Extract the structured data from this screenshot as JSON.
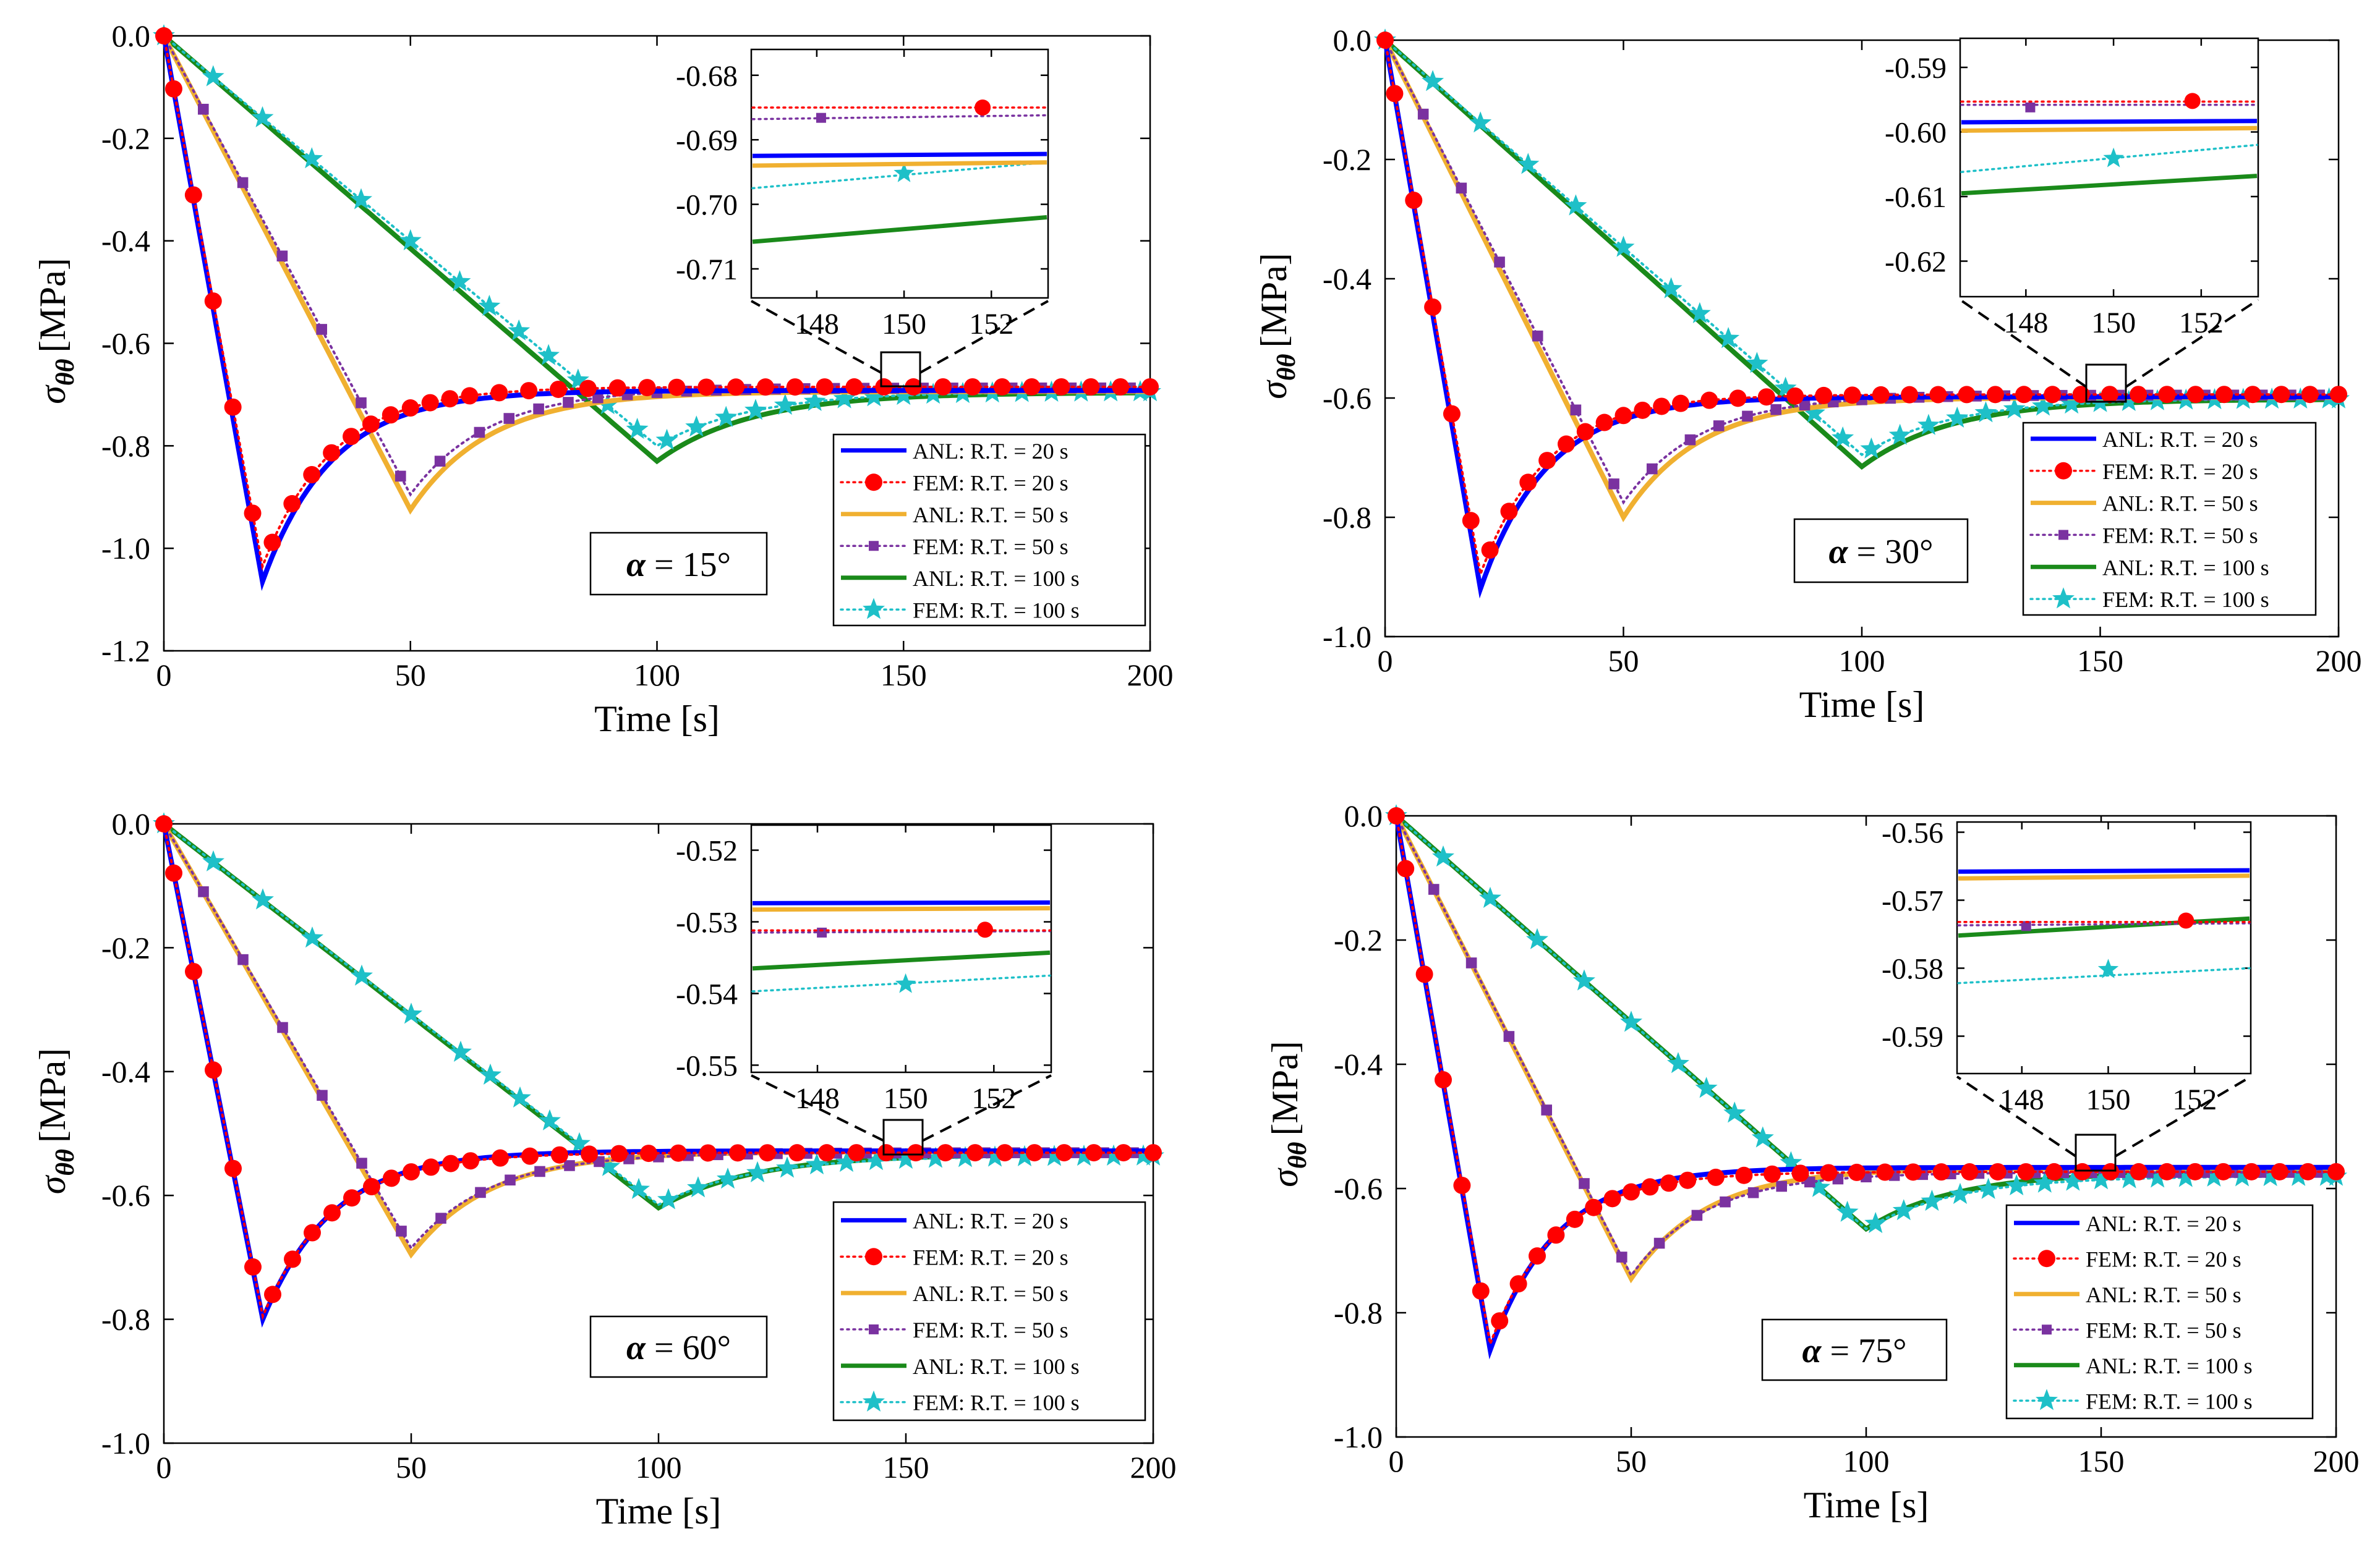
{
  "chart_data": [
    {
      "type": "line",
      "panel": "top-left",
      "alpha_label": "α = 15°",
      "xlabel": "Time [s]",
      "ylabel_symbol": "σ",
      "ylabel_sub": "θθ",
      "ylabel_unit": "[MPa]",
      "xlim": [
        0,
        200
      ],
      "ylim": [
        -1.2,
        0
      ],
      "xticks": [
        0,
        50,
        100,
        150,
        200
      ],
      "xtick_labels": [
        "0",
        "50",
        "100",
        "150",
        "200"
      ],
      "yticks": [
        0,
        -0.2,
        -0.4,
        -0.6,
        -0.8,
        -1.0,
        -1.2
      ],
      "ytick_labels": [
        "0.0",
        "-0.2",
        "-0.4",
        "-0.6",
        "-0.8",
        "-1.0",
        "-1.2"
      ],
      "series": [
        {
          "name": "ANL: R.T. = 20 s",
          "peak_time": 20,
          "peak": -1.065,
          "final": -0.692
        },
        {
          "name": "FEM: R.T. = 20 s",
          "peak_time": 20,
          "peak": -1.035,
          "final": -0.685
        },
        {
          "name": "ANL: R.T. = 50 s",
          "peak_time": 50,
          "peak": -0.925,
          "final": -0.694
        },
        {
          "name": "FEM: R.T. = 50 s",
          "peak_time": 50,
          "peak": -0.895,
          "final": -0.687
        },
        {
          "name": "ANL: R.T. = 100 s",
          "peak_time": 100,
          "peak": -0.83,
          "final": -0.696
        },
        {
          "name": "FEM: R.T. = 100 s",
          "peak_time": 100,
          "peak": -0.8,
          "final": -0.694
        }
      ],
      "inset": {
        "xlim": [
          146.5,
          153.3
        ],
        "ylim": [
          -0.7145,
          -0.676
        ],
        "xticks": [
          148,
          150,
          152
        ],
        "xtick_labels": [
          "148",
          "150",
          "152"
        ],
        "yticks": [
          -0.68,
          -0.69,
          -0.7,
          -0.71
        ],
        "ytick_labels": [
          "-0.68",
          "-0.69",
          "-0.70",
          "-0.71"
        ],
        "lines": [
          {
            "name": "ANL: R.T. = 20 s",
            "y": [
              -0.6925,
              -0.6922
            ]
          },
          {
            "name": "FEM: R.T. = 20 s",
            "y": [
              -0.685,
              -0.685
            ],
            "marker_x": [
              151.8
            ],
            "marker_y": [
              -0.685
            ]
          },
          {
            "name": "ANL: R.T. = 50 s",
            "y": [
              -0.694,
              -0.6935
            ]
          },
          {
            "name": "FEM: R.T. = 50 s",
            "y": [
              -0.6868,
              -0.6862
            ],
            "marker_x": [
              148.1
            ],
            "marker_y": [
              -0.6866
            ]
          },
          {
            "name": "ANL: R.T. = 100 s",
            "y": [
              -0.7058,
              -0.702
            ]
          },
          {
            "name": "FEM: R.T. = 100 s",
            "y": [
              -0.6975,
              -0.6935
            ],
            "marker_x": [
              150
            ],
            "marker_y": [
              -0.6952
            ]
          }
        ]
      }
    },
    {
      "type": "line",
      "panel": "top-right",
      "alpha_label": "α = 30°",
      "xlabel": "Time [s]",
      "ylabel_symbol": "σ",
      "ylabel_sub": "θθ",
      "ylabel_unit": "[MPa]",
      "xlim": [
        0,
        200
      ],
      "ylim": [
        -1.0,
        0
      ],
      "xticks": [
        0,
        50,
        100,
        150,
        200
      ],
      "xtick_labels": [
        "0",
        "50",
        "100",
        "150",
        "200"
      ],
      "yticks": [
        0,
        -0.2,
        -0.4,
        -0.6,
        -0.8,
        -1.0
      ],
      "ytick_labels": [
        "0.0",
        "-0.2",
        "-0.4",
        "-0.6",
        "-0.8",
        "-1.0"
      ],
      "series": [
        {
          "name": "ANL: R.T. = 20 s",
          "peak_time": 20,
          "peak": -0.92,
          "final": -0.598
        },
        {
          "name": "FEM: R.T. = 20 s",
          "peak_time": 20,
          "peak": -0.895,
          "final": -0.594
        },
        {
          "name": "ANL: R.T. = 50 s",
          "peak_time": 50,
          "peak": -0.8,
          "final": -0.599
        },
        {
          "name": "FEM: R.T. = 50 s",
          "peak_time": 50,
          "peak": -0.775,
          "final": -0.595
        },
        {
          "name": "ANL: R.T. = 100 s",
          "peak_time": 100,
          "peak": -0.715,
          "final": -0.602
        },
        {
          "name": "FEM: R.T. = 100 s",
          "peak_time": 100,
          "peak": -0.695,
          "final": -0.601
        }
      ],
      "inset": {
        "xlim": [
          146.5,
          153.3
        ],
        "ylim": [
          -0.6255,
          -0.5855
        ],
        "xticks": [
          148,
          150,
          152
        ],
        "xtick_labels": [
          "148",
          "150",
          "152"
        ],
        "yticks": [
          -0.59,
          -0.6,
          -0.61,
          -0.62
        ],
        "ytick_labels": [
          "-0.59",
          "-0.60",
          "-0.61",
          "-0.62"
        ],
        "lines": [
          {
            "name": "ANL: R.T. = 20 s",
            "y": [
              -0.5985,
              -0.5983
            ]
          },
          {
            "name": "FEM: R.T. = 20 s",
            "y": [
              -0.5953,
              -0.5953
            ],
            "marker_x": [
              151.8
            ],
            "marker_y": [
              -0.5952
            ]
          },
          {
            "name": "ANL: R.T. = 50 s",
            "y": [
              -0.5998,
              -0.5994
            ]
          },
          {
            "name": "FEM: R.T. = 50 s",
            "y": [
              -0.5958,
              -0.5958
            ],
            "marker_x": [
              148.1
            ],
            "marker_y": [
              -0.5962
            ]
          },
          {
            "name": "ANL: R.T. = 100 s",
            "y": [
              -0.6095,
              -0.6068
            ]
          },
          {
            "name": "FEM: R.T. = 100 s",
            "y": [
              -0.6062,
              -0.602
            ],
            "marker_x": [
              150
            ],
            "marker_y": [
              -0.6041
            ]
          }
        ]
      }
    },
    {
      "type": "line",
      "panel": "bottom-left",
      "alpha_label": "α = 60°",
      "xlabel": "Time [s]",
      "ylabel_symbol": "σ",
      "ylabel_sub": "θθ",
      "ylabel_unit": "[MPa]",
      "xlim": [
        0,
        200
      ],
      "ylim": [
        -1.0,
        0
      ],
      "xticks": [
        0,
        50,
        100,
        150,
        200
      ],
      "xtick_labels": [
        "0",
        "50",
        "100",
        "150",
        "200"
      ],
      "yticks": [
        0,
        -0.2,
        -0.4,
        -0.6,
        -0.8,
        -1.0
      ],
      "ytick_labels": [
        "0.0",
        "-0.2",
        "-0.4",
        "-0.6",
        "-0.8",
        "-1.0"
      ],
      "series": [
        {
          "name": "ANL: R.T. = 20 s",
          "peak_time": 20,
          "peak": -0.8,
          "final": -0.528
        },
        {
          "name": "FEM: R.T. = 20 s",
          "peak_time": 20,
          "peak": -0.795,
          "final": -0.531
        },
        {
          "name": "ANL: R.T. = 50 s",
          "peak_time": 50,
          "peak": -0.695,
          "final": -0.529
        },
        {
          "name": "FEM: R.T. = 50 s",
          "peak_time": 50,
          "peak": -0.685,
          "final": -0.531
        },
        {
          "name": "ANL: R.T. = 100 s",
          "peak_time": 100,
          "peak": -0.62,
          "final": -0.533
        },
        {
          "name": "FEM: R.T. = 100 s",
          "peak_time": 100,
          "peak": -0.615,
          "final": -0.536
        }
      ],
      "inset": {
        "xlim": [
          146.5,
          153.3
        ],
        "ylim": [
          -0.551,
          -0.5165
        ],
        "xticks": [
          148,
          150,
          152
        ],
        "xtick_labels": [
          "148",
          "150",
          "152"
        ],
        "yticks": [
          -0.52,
          -0.53,
          -0.54,
          -0.55
        ],
        "ytick_labels": [
          "-0.52",
          "-0.53",
          "-0.54",
          "-0.55"
        ],
        "lines": [
          {
            "name": "ANL: R.T. = 20 s",
            "y": [
              -0.5274,
              -0.5273
            ]
          },
          {
            "name": "FEM: R.T. = 20 s",
            "y": [
              -0.5312,
              -0.5312
            ],
            "marker_x": [
              151.8
            ],
            "marker_y": [
              -0.5311
            ]
          },
          {
            "name": "ANL: R.T. = 50 s",
            "y": [
              -0.5283,
              -0.5281
            ]
          },
          {
            "name": "FEM: R.T. = 50 s",
            "y": [
              -0.5315,
              -0.5313
            ],
            "marker_x": [
              148.1
            ],
            "marker_y": [
              -0.5315
            ]
          },
          {
            "name": "ANL: R.T. = 100 s",
            "y": [
              -0.5365,
              -0.5343
            ]
          },
          {
            "name": "FEM: R.T. = 100 s",
            "y": [
              -0.5397,
              -0.5375
            ],
            "marker_x": [
              150
            ],
            "marker_y": [
              -0.5387
            ]
          }
        ]
      }
    },
    {
      "type": "line",
      "panel": "bottom-right",
      "alpha_label": "α = 75°",
      "xlabel": "Time [s]",
      "ylabel_symbol": "σ",
      "ylabel_sub": "θθ",
      "ylabel_unit": "[MPa]",
      "xlim": [
        0,
        200
      ],
      "ylim": [
        -1.0,
        0
      ],
      "xticks": [
        0,
        50,
        100,
        150,
        200
      ],
      "xtick_labels": [
        "0",
        "50",
        "100",
        "150",
        "200"
      ],
      "yticks": [
        0,
        -0.2,
        -0.4,
        -0.6,
        -0.8,
        -1.0
      ],
      "ytick_labels": [
        "0.0",
        "-0.2",
        "-0.4",
        "-0.6",
        "-0.8",
        "-1.0"
      ],
      "series": [
        {
          "name": "ANL: R.T. = 20 s",
          "peak_time": 20,
          "peak": -0.86,
          "final": -0.566
        },
        {
          "name": "FEM: R.T. = 20 s",
          "peak_time": 20,
          "peak": -0.85,
          "final": -0.573
        },
        {
          "name": "ANL: R.T. = 50 s",
          "peak_time": 50,
          "peak": -0.745,
          "final": -0.567
        },
        {
          "name": "FEM: R.T. = 50 s",
          "peak_time": 50,
          "peak": -0.74,
          "final": -0.574
        },
        {
          "name": "ANL: R.T. = 100 s",
          "peak_time": 100,
          "peak": -0.665,
          "final": -0.573
        },
        {
          "name": "FEM: R.T. = 100 s",
          "peak_time": 100,
          "peak": -0.665,
          "final": -0.58
        }
      ],
      "inset": {
        "xlim": [
          146.5,
          153.3
        ],
        "ylim": [
          -0.5955,
          -0.5585
        ],
        "xticks": [
          148,
          150,
          152
        ],
        "xtick_labels": [
          "148",
          "150",
          "152"
        ],
        "yticks": [
          -0.56,
          -0.57,
          -0.58,
          -0.59
        ],
        "ytick_labels": [
          "-0.56",
          "-0.57",
          "-0.58",
          "-0.59"
        ],
        "lines": [
          {
            "name": "ANL: R.T. = 20 s",
            "y": [
              -0.5658,
              -0.5656
            ]
          },
          {
            "name": "FEM: R.T. = 20 s",
            "y": [
              -0.5732,
              -0.5732
            ],
            "marker_x": [
              151.8
            ],
            "marker_y": [
              -0.573
            ]
          },
          {
            "name": "ANL: R.T. = 50 s",
            "y": [
              -0.5668,
              -0.5664
            ]
          },
          {
            "name": "FEM: R.T. = 50 s",
            "y": [
              -0.5737,
              -0.5734
            ],
            "marker_x": [
              148.1
            ],
            "marker_y": [
              -0.5738
            ]
          },
          {
            "name": "ANL: R.T. = 100 s",
            "y": [
              -0.5752,
              -0.5727
            ]
          },
          {
            "name": "FEM: R.T. = 100 s",
            "y": [
              -0.5822,
              -0.58
            ],
            "marker_x": [
              150
            ],
            "marker_y": [
              -0.5802
            ]
          }
        ]
      }
    }
  ],
  "styles": [
    {
      "color": "#0000ff",
      "dash": "",
      "marker": "none"
    },
    {
      "color": "#ff0000",
      "dash": "dotted",
      "marker": "circle"
    },
    {
      "color": "#f0b030",
      "dash": "",
      "marker": "none"
    },
    {
      "color": "#7a32a0",
      "dash": "dotted",
      "marker": "square"
    },
    {
      "color": "#1a8a1a",
      "dash": "",
      "marker": "none"
    },
    {
      "color": "#1ec0c8",
      "dash": "dotted",
      "marker": "star"
    }
  ]
}
